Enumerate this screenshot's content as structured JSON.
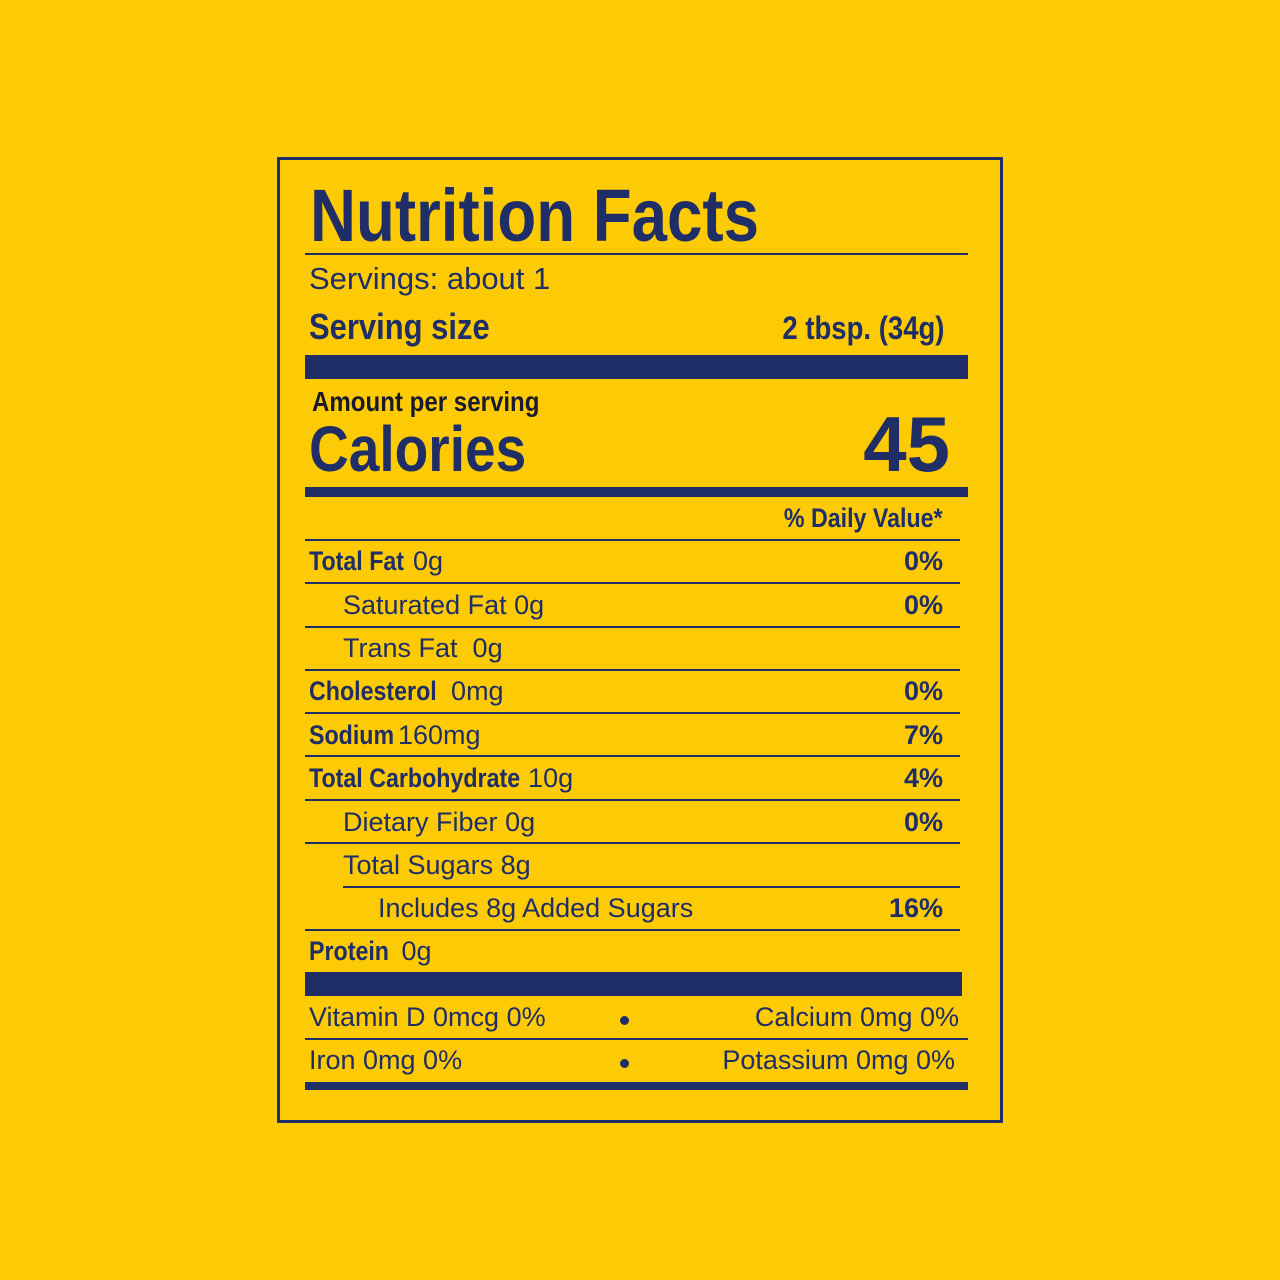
{
  "title": "Nutrition Facts",
  "servings": "Servings: about 1",
  "serving_size": {
    "label": "Serving size",
    "value": "2 tbsp. (34g)"
  },
  "amount_per_serving": "Amount per serving",
  "calories": {
    "label": "Calories",
    "value": "45"
  },
  "daily_value_header": "% Daily Value*",
  "nutrients": [
    {
      "name": "Total Fat",
      "amount": "0g",
      "dv": "0%"
    },
    {
      "name": "Saturated Fat",
      "amount": "0g",
      "dv": "0%"
    },
    {
      "name": "Trans Fat",
      "amount": "0g"
    },
    {
      "name": "Cholesterol",
      "amount": "0mg",
      "dv": "0%"
    },
    {
      "name": "Sodium",
      "amount": "160mg",
      "dv": "7%"
    },
    {
      "name": "Total Carbohydrate",
      "amount": "10g",
      "dv": "4%"
    },
    {
      "name": "Dietary Fiber",
      "amount": "0g",
      "dv": "0%"
    },
    {
      "name": "Total Sugars",
      "amount": "8g"
    },
    {
      "name": "Includes 8g Added Sugars",
      "dv": "16%"
    },
    {
      "name": "Protein",
      "amount": "0g"
    }
  ],
  "vitamins": [
    [
      "Vitamin D 0mcg 0%",
      "Calcium 0mg 0%"
    ],
    [
      "Iron 0mg 0%",
      "Potassium 0mg 0%"
    ]
  ]
}
